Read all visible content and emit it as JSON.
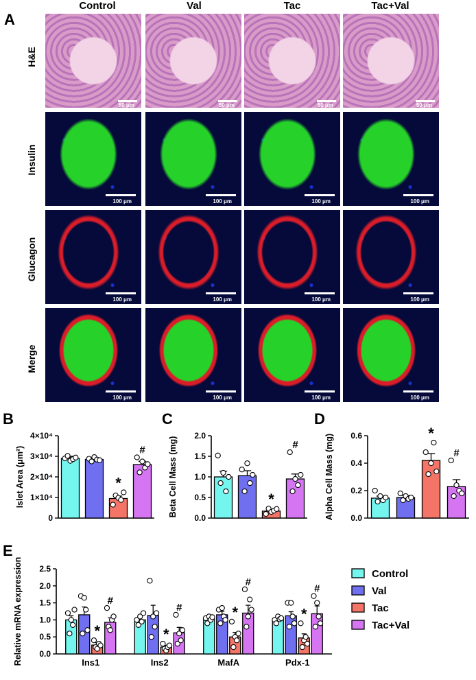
{
  "figure": {
    "panel_labels": {
      "A": "A",
      "B": "B",
      "C": "C",
      "D": "D",
      "E": "E"
    },
    "columns": [
      "Control",
      "Val",
      "Tac",
      "Tac+Val"
    ],
    "rows": [
      "H&E",
      "Insulin",
      "Glucagon",
      "Merge"
    ],
    "scale_he": "50 μm",
    "scale_fluor": "100 μm"
  },
  "colors": {
    "Control": "#74f6ef",
    "Val": "#6f6ff0",
    "Tac": "#f47467",
    "Tac+Val": "#d575f2"
  },
  "legend": [
    "Control",
    "Val",
    "Tac",
    "Tac+Val"
  ],
  "chart_data": [
    {
      "id": "B",
      "type": "bar",
      "ylabel": "Islet Area (μm²)",
      "yticks": [
        "0",
        "1×10⁴",
        "2×10⁴",
        "3×10⁴",
        "4×10⁴"
      ],
      "ylim": [
        0,
        40000
      ],
      "categories": [
        "Control",
        "Val",
        "Tac",
        "Tac+Val"
      ],
      "values": [
        29000,
        28500,
        9500,
        26000
      ],
      "errors": [
        1000,
        900,
        1200,
        1600
      ],
      "points": [
        [
          29000,
          30200,
          27800,
          28600,
          29400
        ],
        [
          28800,
          27500,
          29600,
          28400,
          28100
        ],
        [
          6500,
          11000,
          9800,
          8800,
          12500
        ],
        [
          29500,
          22200,
          27500,
          24500,
          26200
        ]
      ],
      "annotations": [
        "",
        "",
        "*",
        "#"
      ]
    },
    {
      "id": "C",
      "type": "bar",
      "ylabel": "Beta Cell Mass (mg)",
      "yticks": [
        "0.0",
        "0.5",
        "1.0",
        "1.5",
        "2.0"
      ],
      "ylim": [
        0,
        2.0
      ],
      "categories": [
        "Control",
        "Val",
        "Tac",
        "Tac+Val"
      ],
      "values": [
        1.0,
        1.03,
        0.17,
        0.95
      ],
      "errors": [
        0.14,
        0.12,
        0.03,
        0.12
      ],
      "points": [
        [
          1.52,
          0.85,
          1.1,
          0.65,
          1.0
        ],
        [
          1.18,
          0.65,
          1.33,
          0.85,
          1.05
        ],
        [
          0.1,
          0.23,
          0.15,
          0.18,
          0.22
        ],
        [
          1.6,
          0.65,
          0.95,
          0.8,
          1.05
        ]
      ],
      "annotations": [
        "",
        "",
        "*",
        "#"
      ]
    },
    {
      "id": "D",
      "type": "bar",
      "ylabel": "Alpha Cell Mass (mg)",
      "yticks": [
        "0.0",
        "0.2",
        "0.4",
        "0.6"
      ],
      "ylim": [
        0,
        0.6
      ],
      "categories": [
        "Control",
        "Val",
        "Tac",
        "Tac+Val"
      ],
      "values": [
        0.145,
        0.15,
        0.42,
        0.23
      ],
      "errors": [
        0.015,
        0.015,
        0.05,
        0.05
      ],
      "points": [
        [
          0.2,
          0.12,
          0.16,
          0.13,
          0.15
        ],
        [
          0.18,
          0.13,
          0.16,
          0.14,
          0.15
        ],
        [
          0.48,
          0.32,
          0.4,
          0.55,
          0.34
        ],
        [
          0.42,
          0.16,
          0.24,
          0.2,
          0.18
        ]
      ],
      "annotations": [
        "",
        "",
        "*",
        "#"
      ]
    },
    {
      "id": "E",
      "type": "bar",
      "ylabel": "Relative mRNA expression",
      "yticks": [
        "0.0",
        "0.5",
        "1.0",
        "1.5",
        "2.0",
        "2.5"
      ],
      "ylim": [
        0,
        2.5
      ],
      "categories": [
        "Ins1",
        "Ins2",
        "MafA",
        "Pdx-1"
      ],
      "series": [
        {
          "name": "Control",
          "values": [
            1.0,
            1.0,
            1.03,
            1.02
          ],
          "errors": [
            0.12,
            0.07,
            0.05,
            0.05
          ],
          "points": [
            [
              1.2,
              0.6,
              1.0,
              0.85,
              1.3
            ],
            [
              1.0,
              0.85,
              1.1,
              0.95,
              1.2
            ],
            [
              1.05,
              0.9,
              1.1,
              1.0,
              1.08
            ],
            [
              1.0,
              0.9,
              1.1,
              1.02,
              1.05
            ]
          ]
        },
        {
          "name": "Val",
          "values": [
            1.15,
            1.13,
            1.15,
            1.12
          ],
          "errors": [
            0.23,
            0.3,
            0.1,
            0.12
          ],
          "points": [
            [
              1.7,
              0.6,
              1.65,
              1.3,
              0.7
            ],
            [
              2.15,
              0.5,
              1.1,
              0.8,
              1.2
            ],
            [
              1.3,
              0.9,
              1.35,
              1.1,
              1.0
            ],
            [
              1.5,
              0.8,
              1.5,
              1.1,
              0.9
            ]
          ]
        },
        {
          "name": "Tac",
          "values": [
            0.26,
            0.2,
            0.5,
            0.47
          ],
          "errors": [
            0.07,
            0.05,
            0.13,
            0.12
          ],
          "points": [
            [
              0.4,
              0.2,
              0.15,
              0.3,
              0.25
            ],
            [
              0.3,
              0.15,
              0.1,
              0.2,
              0.25
            ],
            [
              0.95,
              0.2,
              0.5,
              0.4,
              0.6
            ],
            [
              0.9,
              0.2,
              0.4,
              0.5,
              0.3
            ]
          ]
        },
        {
          "name": "Tac+Val",
          "values": [
            0.93,
            0.62,
            1.2,
            1.18
          ],
          "errors": [
            0.13,
            0.16,
            0.23,
            0.23
          ],
          "points": [
            [
              1.35,
              0.8,
              0.7,
              1.0,
              1.1
            ],
            [
              1.15,
              0.3,
              0.6,
              0.4,
              0.7
            ],
            [
              1.9,
              0.8,
              1.1,
              1.6,
              1.3
            ],
            [
              1.7,
              0.8,
              1.5,
              1.1,
              0.9
            ]
          ]
        }
      ],
      "annotations": [
        [
          "",
          "",
          "*",
          "#"
        ],
        [
          "",
          "",
          "*",
          "#"
        ],
        [
          "",
          "",
          "*",
          "#"
        ],
        [
          "",
          "",
          "*",
          "#"
        ]
      ]
    }
  ]
}
